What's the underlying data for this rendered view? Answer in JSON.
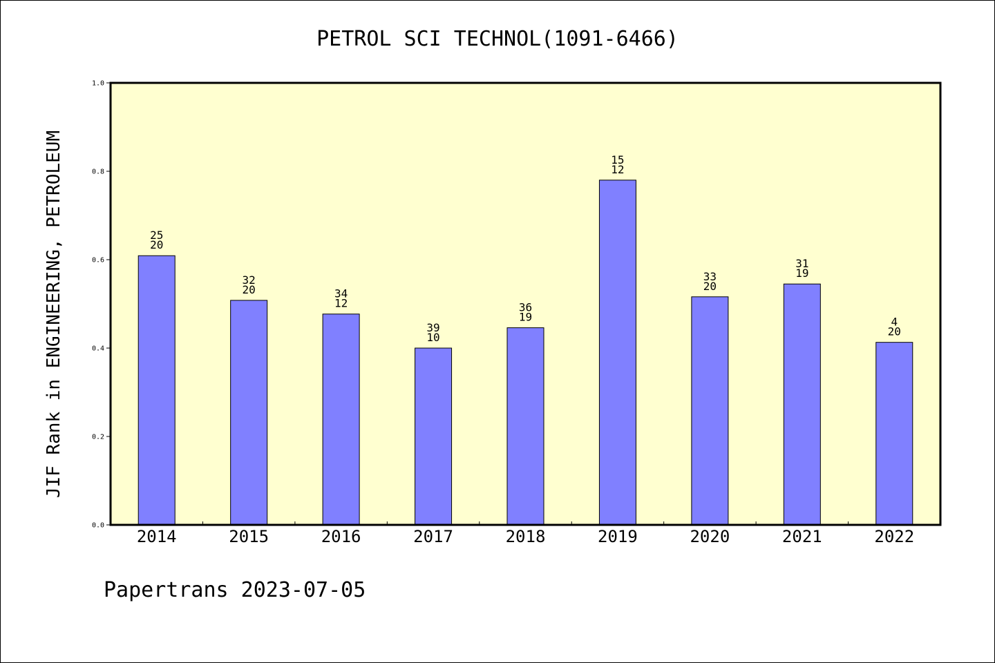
{
  "chart_data": {
    "type": "bar",
    "title": "PETROL SCI TECHNOL(1091-6466)",
    "xlabel": "",
    "ylabel": "JIF Rank in ENGINEERING, PETROLEUM",
    "ylim": [
      0,
      1.0
    ],
    "yticks": [
      "0.0",
      "0.2",
      "0.4",
      "0.6",
      "0.8",
      "1.0"
    ],
    "categories": [
      "2014",
      "2015",
      "2016",
      "2017",
      "2018",
      "2019",
      "2020",
      "2021",
      "2022"
    ],
    "values": [
      0.609,
      0.508,
      0.477,
      0.4,
      0.446,
      0.78,
      0.516,
      0.545,
      0.413
    ],
    "labels_top": [
      "25",
      "32",
      "34",
      "39",
      "36",
      "15",
      "33",
      "31",
      "4"
    ],
    "labels_bottom": [
      "20",
      "20",
      "12",
      "10",
      "19",
      "12",
      "20",
      "19",
      "20"
    ],
    "grid": false,
    "colors": {
      "plot_bg": "#ffffd0",
      "bar": "#8080ff",
      "bar_edge": "#000000"
    }
  },
  "footer": "Papertrans 2023-07-05"
}
